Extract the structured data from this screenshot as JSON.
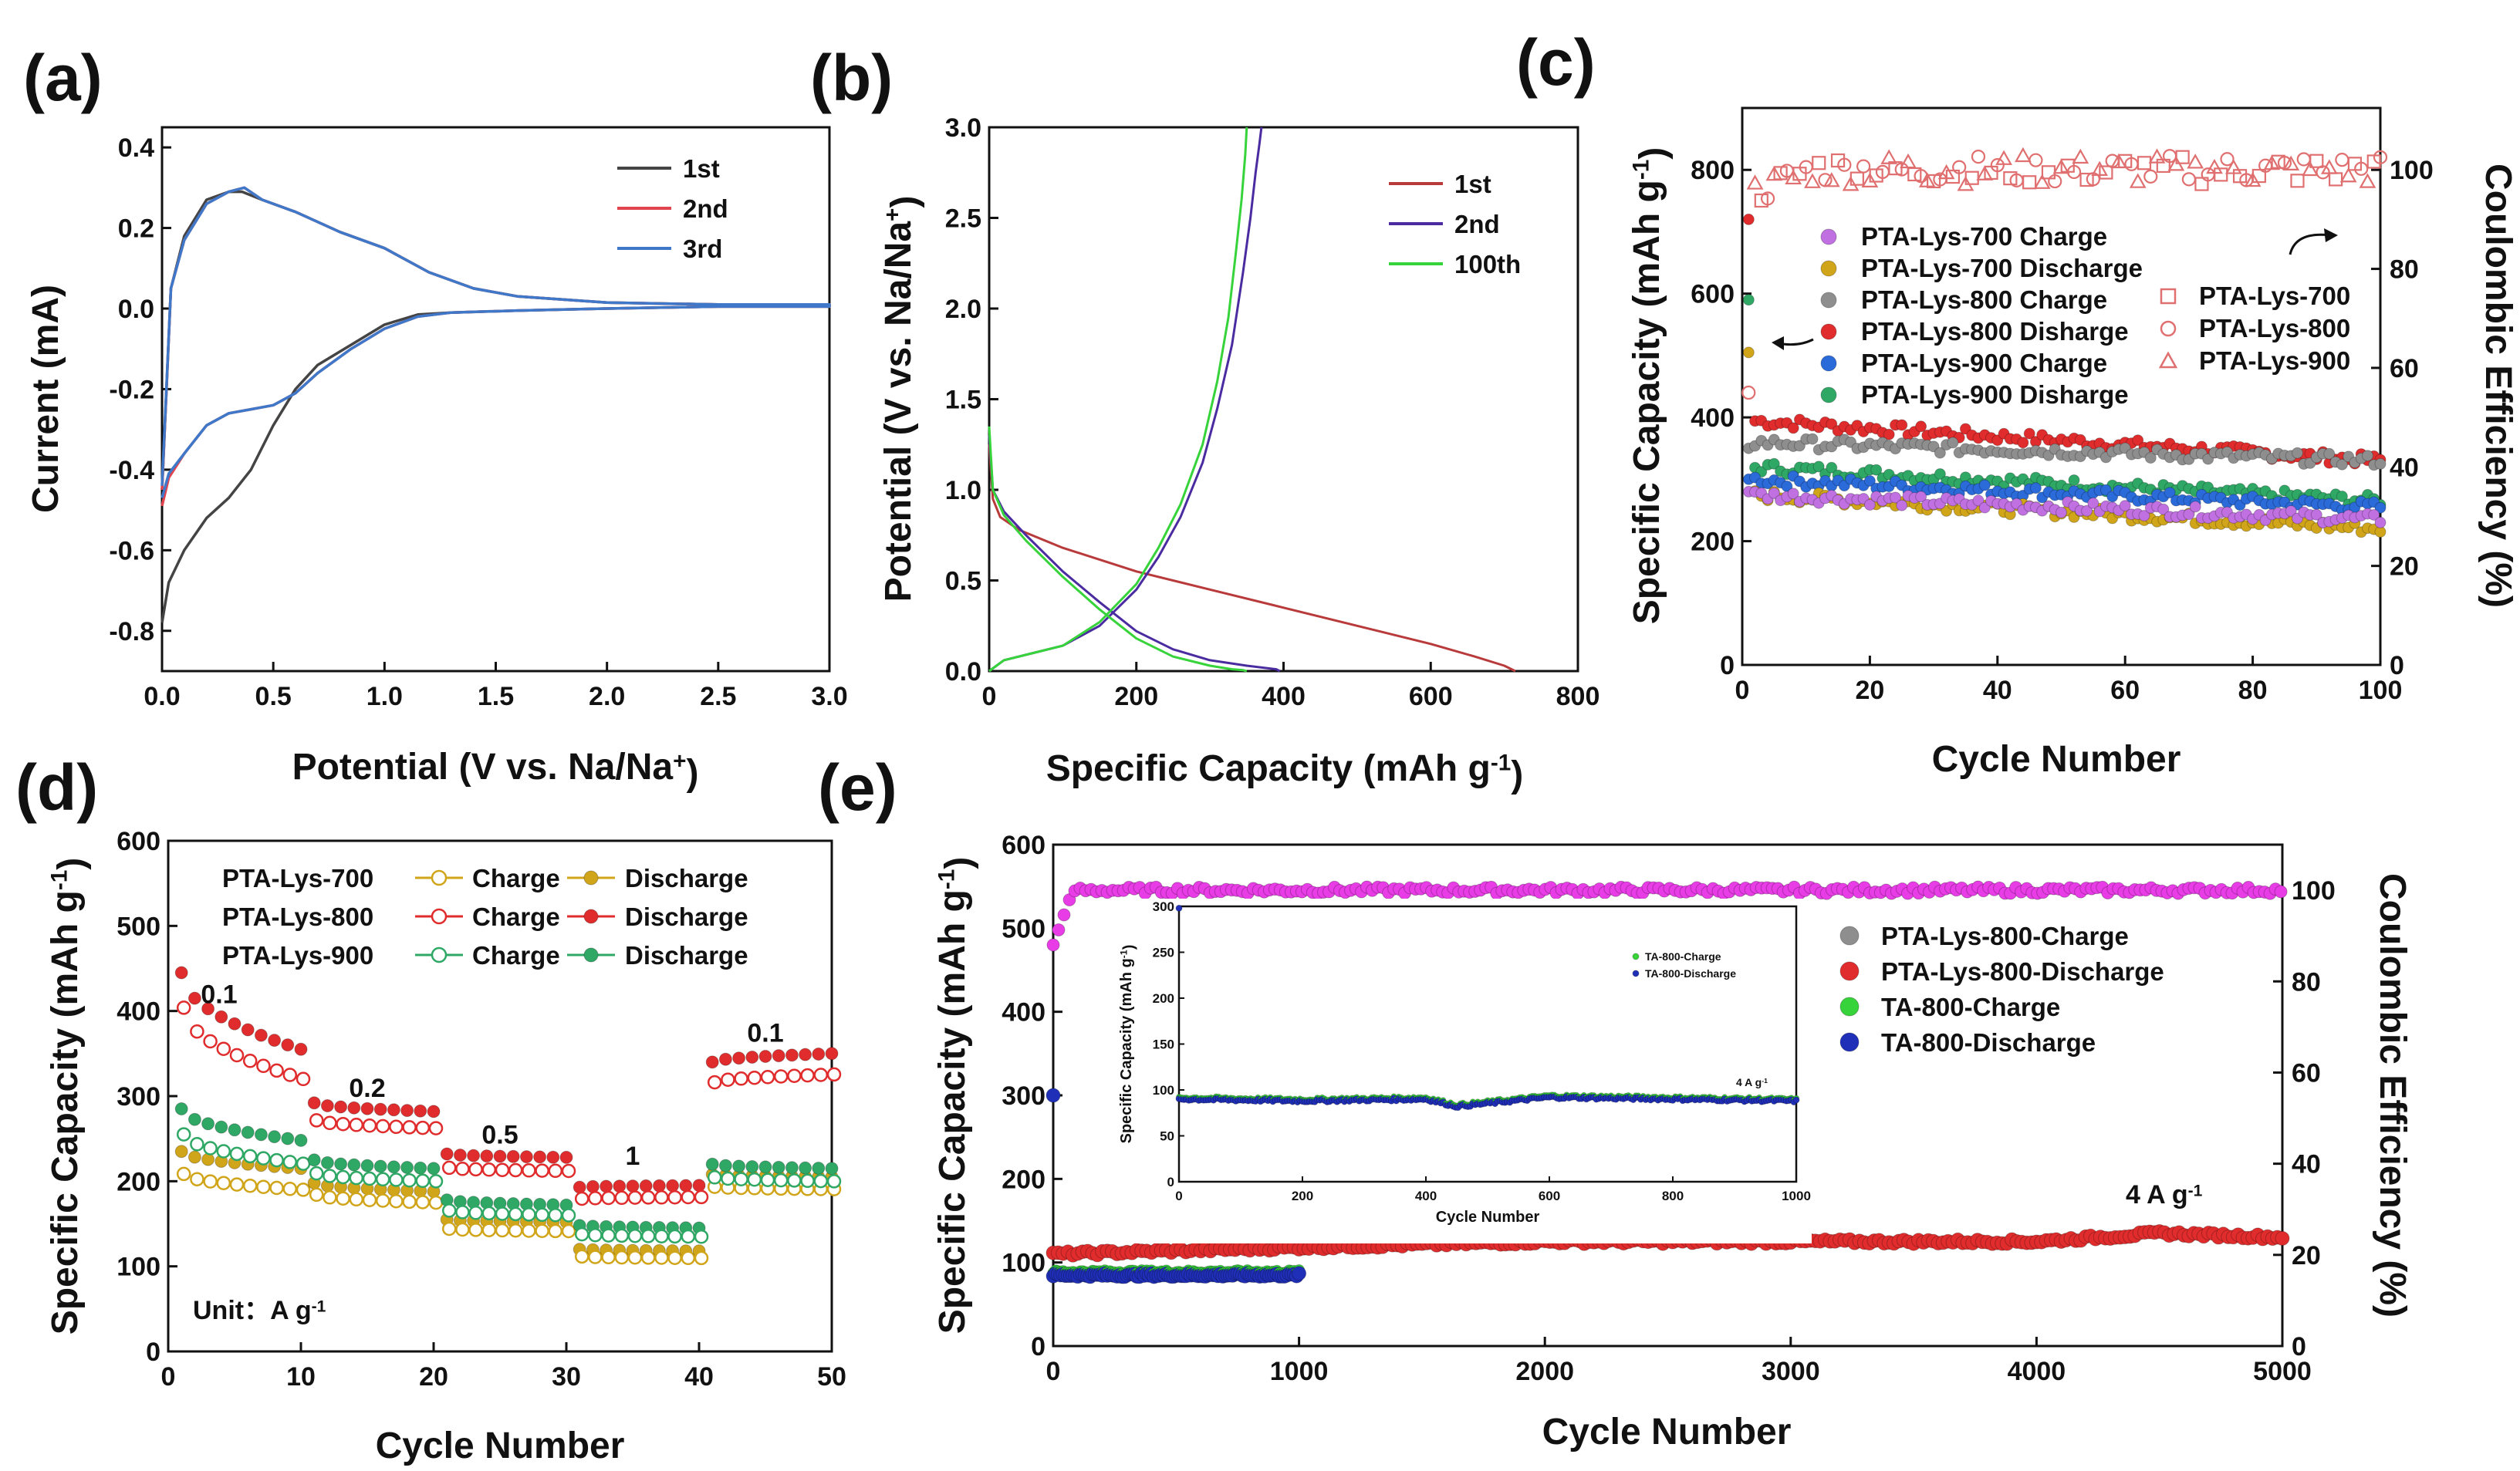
{
  "chart_data": [
    {
      "id": "a",
      "type": "line",
      "panel_label": "(a)",
      "xlabel": "Potential (V vs. Na/Na",
      "xlabel_sup": "+",
      "xlabel_end": ")",
      "ylabel": "Current (mA)",
      "xlim": [
        0,
        3
      ],
      "ylim": [
        -0.9,
        0.45
      ],
      "xticks": [
        "0.0",
        "0.5",
        "1.0",
        "1.5",
        "2.0",
        "2.5",
        "3.0"
      ],
      "yticks": [
        "-0.8",
        "-0.6",
        "-0.4",
        "-0.2",
        "0.0",
        "0.2",
        "0.4"
      ],
      "legend": [
        "1st",
        "2nd",
        "3rd"
      ],
      "colors": [
        "#444444",
        "#e0444f",
        "#3f78c8"
      ],
      "series": [
        {
          "name": "1st",
          "x": [
            0,
            0.04,
            0.1,
            0.2,
            0.3,
            0.36,
            0.45,
            0.6,
            0.8,
            1.0,
            1.2,
            1.4,
            1.6,
            2.0,
            2.5,
            3.0,
            3.0,
            2.5,
            2.0,
            1.6,
            1.3,
            1.15,
            1.0,
            0.85,
            0.7,
            0.6,
            0.5,
            0.4,
            0.3,
            0.2,
            0.1,
            0.03,
            0
          ],
          "y": [
            -0.45,
            0.05,
            0.18,
            0.27,
            0.29,
            0.29,
            0.27,
            0.24,
            0.19,
            0.15,
            0.09,
            0.05,
            0.03,
            0.015,
            0.01,
            0.01,
            0.005,
            0.005,
            0,
            -0.005,
            -0.01,
            -0.015,
            -0.04,
            -0.09,
            -0.14,
            -0.2,
            -0.29,
            -0.4,
            -0.47,
            -0.52,
            -0.6,
            -0.68,
            -0.78
          ]
        },
        {
          "name": "2nd",
          "x": [
            0,
            0.04,
            0.1,
            0.2,
            0.3,
            0.37,
            0.45,
            0.6,
            0.8,
            1.0,
            1.2,
            1.4,
            1.6,
            2.0,
            2.5,
            3.0,
            3.0,
            2.5,
            2.0,
            1.6,
            1.3,
            1.15,
            1.0,
            0.85,
            0.7,
            0.6,
            0.5,
            0.4,
            0.3,
            0.2,
            0.1,
            0.03,
            0
          ],
          "y": [
            -0.45,
            0.05,
            0.17,
            0.26,
            0.29,
            0.3,
            0.27,
            0.24,
            0.19,
            0.15,
            0.09,
            0.05,
            0.03,
            0.015,
            0.01,
            0.01,
            0.005,
            0.005,
            0,
            -0.005,
            -0.01,
            -0.02,
            -0.05,
            -0.1,
            -0.16,
            -0.21,
            -0.24,
            -0.25,
            -0.26,
            -0.29,
            -0.36,
            -0.42,
            -0.49
          ]
        },
        {
          "name": "3rd",
          "x": [
            0,
            0.04,
            0.1,
            0.2,
            0.3,
            0.37,
            0.45,
            0.6,
            0.8,
            1.0,
            1.2,
            1.4,
            1.6,
            2.0,
            2.5,
            3.0,
            3.0,
            2.5,
            2.0,
            1.6,
            1.3,
            1.15,
            1.0,
            0.85,
            0.7,
            0.6,
            0.5,
            0.4,
            0.3,
            0.2,
            0.1,
            0.03,
            0
          ],
          "y": [
            -0.44,
            0.05,
            0.17,
            0.26,
            0.29,
            0.3,
            0.27,
            0.24,
            0.19,
            0.15,
            0.09,
            0.05,
            0.03,
            0.015,
            0.01,
            0.01,
            0.005,
            0.005,
            0,
            -0.005,
            -0.01,
            -0.02,
            -0.05,
            -0.1,
            -0.16,
            -0.21,
            -0.24,
            -0.25,
            -0.26,
            -0.29,
            -0.36,
            -0.41,
            -0.47
          ]
        }
      ]
    },
    {
      "id": "b",
      "type": "line",
      "panel_label": "(b)",
      "xlabel": "Specific Capacity (mAh g",
      "xlabel_sup": "-1",
      "xlabel_end": ")",
      "ylabel": "Potential (V vs. Na/Na",
      "ylabel_sup": "+",
      "ylabel_end": ")",
      "xlim": [
        0,
        800
      ],
      "ylim": [
        0,
        3
      ],
      "xticks": [
        "0",
        "200",
        "400",
        "600",
        "800"
      ],
      "yticks": [
        "0.0",
        "0.5",
        "1.0",
        "1.5",
        "2.0",
        "2.5",
        "3.0"
      ],
      "legend": [
        "1st",
        "2nd",
        "100th"
      ],
      "colors": [
        "#b83a3a",
        "#4a2ca0",
        "#36d33a"
      ],
      "series": [
        {
          "name": "1st",
          "x": [
            0,
            5,
            15,
            40,
            100,
            200,
            300,
            400,
            500,
            600,
            660,
            700,
            715
          ],
          "y": [
            1.25,
            0.95,
            0.85,
            0.78,
            0.68,
            0.55,
            0.45,
            0.35,
            0.25,
            0.15,
            0.08,
            0.03,
            0
          ]
        },
        {
          "name": "2nd discharge",
          "x": [
            0,
            5,
            20,
            50,
            100,
            150,
            200,
            250,
            300,
            350,
            390,
            395
          ],
          "y": [
            1.3,
            1.0,
            0.88,
            0.75,
            0.55,
            0.38,
            0.22,
            0.12,
            0.06,
            0.03,
            0.01,
            0
          ]
        },
        {
          "name": "2nd charge",
          "x": [
            0,
            20,
            60,
            100,
            150,
            200,
            230,
            260,
            290,
            310,
            330,
            345,
            355,
            362,
            367,
            370
          ],
          "y": [
            0,
            0.06,
            0.1,
            0.14,
            0.25,
            0.45,
            0.63,
            0.85,
            1.15,
            1.45,
            1.8,
            2.2,
            2.5,
            2.75,
            2.9,
            3.0
          ]
        },
        {
          "name": "100th discharge",
          "x": [
            0,
            5,
            20,
            50,
            100,
            150,
            200,
            250,
            300,
            330,
            345,
            350
          ],
          "y": [
            1.35,
            1.0,
            0.86,
            0.72,
            0.52,
            0.34,
            0.18,
            0.08,
            0.03,
            0.01,
            0.005,
            0
          ]
        },
        {
          "name": "100th charge",
          "x": [
            0,
            20,
            60,
            100,
            150,
            200,
            230,
            260,
            290,
            310,
            325,
            335,
            343,
            348,
            350
          ],
          "y": [
            0,
            0.06,
            0.1,
            0.14,
            0.27,
            0.48,
            0.68,
            0.92,
            1.25,
            1.6,
            1.95,
            2.3,
            2.6,
            2.85,
            3.0
          ]
        }
      ]
    },
    {
      "id": "c",
      "type": "scatter",
      "panel_label": "(c)",
      "xlabel": "Cycle Number",
      "ylabel": "Specific Capacity (mAh g",
      "ylabel_sup": "-1",
      "ylabel_end": ")",
      "y2label": "Coulombic Efficiency (%)",
      "xlim": [
        0,
        100
      ],
      "ylim": [
        0,
        900
      ],
      "y2lim": [
        0,
        112.5
      ],
      "xticks": [
        "0",
        "20",
        "40",
        "60",
        "80",
        "100"
      ],
      "yticks": [
        "0",
        "200",
        "400",
        "600",
        "800"
      ],
      "y2ticks": [
        "0",
        "20",
        "40",
        "60",
        "80",
        "100"
      ],
      "legend_left": [
        "PTA-Lys-700 Charge",
        "PTA-Lys-700 Discharge",
        "PTA-Lys-800 Charge",
        "PTA-Lys-800 Disharge",
        "PTA-Lys-900 Charge",
        "PTA-Lys-900 Disharge"
      ],
      "legend_left_colors": [
        "#c070e0",
        "#d1a51a",
        "#8e8e8e",
        "#e02c2c",
        "#2a6ad9",
        "#2fa866"
      ],
      "legend_right": [
        "PTA-Lys-700",
        "PTA-Lys-800",
        "PTA-Lys-900"
      ],
      "series": [
        {
          "name": "PTA-Lys-800 Disharge",
          "first": 720,
          "start": 395,
          "end": 330
        },
        {
          "name": "PTA-Lys-900 Disharge",
          "first": 590,
          "start": 320,
          "end": 265
        },
        {
          "name": "PTA-Lys-900 Charge",
          "first": 300,
          "start": 300,
          "end": 255
        },
        {
          "name": "PTA-Lys-700 Discharge",
          "first": 505,
          "start": 275,
          "end": 220
        },
        {
          "name": "PTA-Lys-700 Charge",
          "first": 280,
          "start": 275,
          "end": 235
        },
        {
          "name": "PTA-Lys-800 Charge",
          "first": 350,
          "start": 360,
          "end": 330
        },
        {
          "name": "Coulombic Efficiency",
          "first": 55,
          "start": 95,
          "end": 100
        }
      ]
    },
    {
      "id": "d",
      "type": "scatter",
      "panel_label": "(d)",
      "xlabel": "Cycle Number",
      "ylabel": "Specific Capacity (mAh g",
      "ylabel_sup": "-1",
      "ylabel_end": ")",
      "xlim": [
        0,
        50
      ],
      "ylim": [
        0,
        600
      ],
      "xticks": [
        "0",
        "10",
        "20",
        "30",
        "40",
        "50"
      ],
      "yticks": [
        "0",
        "100",
        "200",
        "300",
        "400",
        "500",
        "600"
      ],
      "legend": [
        {
          "sample": "PTA-Lys-700",
          "charge": "Charge",
          "discharge": "Discharge",
          "color": "#d1a51a"
        },
        {
          "sample": "PTA-Lys-800",
          "charge": "Charge",
          "discharge": "Discharge",
          "color": "#e02c2c"
        },
        {
          "sample": "PTA-Lys-900",
          "charge": "Charge",
          "discharge": "Discharge",
          "color": "#2fa866"
        }
      ],
      "rates": [
        {
          "label": "0.1",
          "cycle": 5,
          "value": 420
        },
        {
          "label": "0.2",
          "cycle": 15,
          "value": 310
        },
        {
          "label": "0.5",
          "cycle": 25,
          "value": 255
        },
        {
          "label": "1",
          "cycle": 35,
          "value": 230
        },
        {
          "label": "0.1",
          "cycle": 45,
          "value": 375
        }
      ],
      "unit_label": "Unit：A g",
      "unit_sup": "-1",
      "segments": {
        "PTA-Lys-800": [
          [
            445,
            355
          ],
          [
            292,
            282
          ],
          [
            232,
            228
          ],
          [
            193,
            195
          ],
          [
            340,
            350
          ]
        ],
        "PTA-Lys-900": [
          [
            285,
            248
          ],
          [
            225,
            215
          ],
          [
            178,
            172
          ],
          [
            148,
            145
          ],
          [
            220,
            215
          ]
        ],
        "PTA-Lys-700": [
          [
            235,
            215
          ],
          [
            198,
            188
          ],
          [
            155,
            152
          ],
          [
            120,
            118
          ],
          [
            208,
            205
          ]
        ]
      }
    },
    {
      "id": "e",
      "type": "scatter",
      "panel_label": "(e)",
      "xlabel": "Cycle Number",
      "ylabel": "Specific Capacity (mAh g",
      "ylabel_sup": "-1",
      "ylabel_end": ")",
      "y2label": "Coulombic Efficiency (%)",
      "xlim": [
        0,
        5000
      ],
      "ylim": [
        0,
        600
      ],
      "y2lim": [
        0,
        110
      ],
      "xticks": [
        "0",
        "1000",
        "2000",
        "3000",
        "4000",
        "5000"
      ],
      "yticks": [
        "0",
        "100",
        "200",
        "300",
        "400",
        "500",
        "600"
      ],
      "y2ticks": [
        "0",
        "20",
        "40",
        "60",
        "80",
        "100"
      ],
      "rate_label": "4 A g",
      "rate_sup": "-1",
      "legend": [
        "PTA-Lys-800-Charge",
        "PTA-Lys-800-Discharge",
        "TA-800-Charge",
        "TA-800-Discharge"
      ],
      "legend_colors": [
        "#8e8e8e",
        "#e02c2c",
        "#36d33a",
        "#1f2fb8"
      ],
      "series": [
        {
          "name": "PTA-Lys-800-Discharge",
          "cycles": [
            0,
            1000,
            2000,
            3000,
            4000,
            4500,
            5000
          ],
          "values": [
            110,
            118,
            125,
            125,
            125,
            135,
            130
          ]
        },
        {
          "name": "TA-800-Discharge",
          "cycles": [
            0,
            500,
            1000
          ],
          "values": [
            85,
            85,
            85
          ]
        },
        {
          "name": "Coulombic Efficiency",
          "cycles": [
            0,
            100,
            5000
          ],
          "values": [
            88,
            100,
            100
          ]
        }
      ],
      "inset": {
        "xlabel": "Cycle Number",
        "ylabel": "Specific Capacity (mAh g",
        "ylabel_sup": "-1",
        "ylabel_end": ")",
        "xlim": [
          0,
          1000
        ],
        "ylim": [
          0,
          300
        ],
        "xticks": [
          "0",
          "200",
          "400",
          "600",
          "800",
          "1000"
        ],
        "yticks": [
          "0",
          "50",
          "100",
          "150",
          "200",
          "250",
          "300"
        ],
        "legend": [
          "TA-800-Charge",
          "TA-800-Discharge"
        ],
        "rate_label": "4 A g",
        "rate_sup": "-1",
        "series": [
          {
            "name": "TA-800-Discharge",
            "cycles": [
              0,
              200,
              400,
              450,
              600,
              800,
              1000
            ],
            "values": [
              90,
              88,
              90,
              82,
              92,
              90,
              88
            ]
          }
        ]
      }
    }
  ]
}
